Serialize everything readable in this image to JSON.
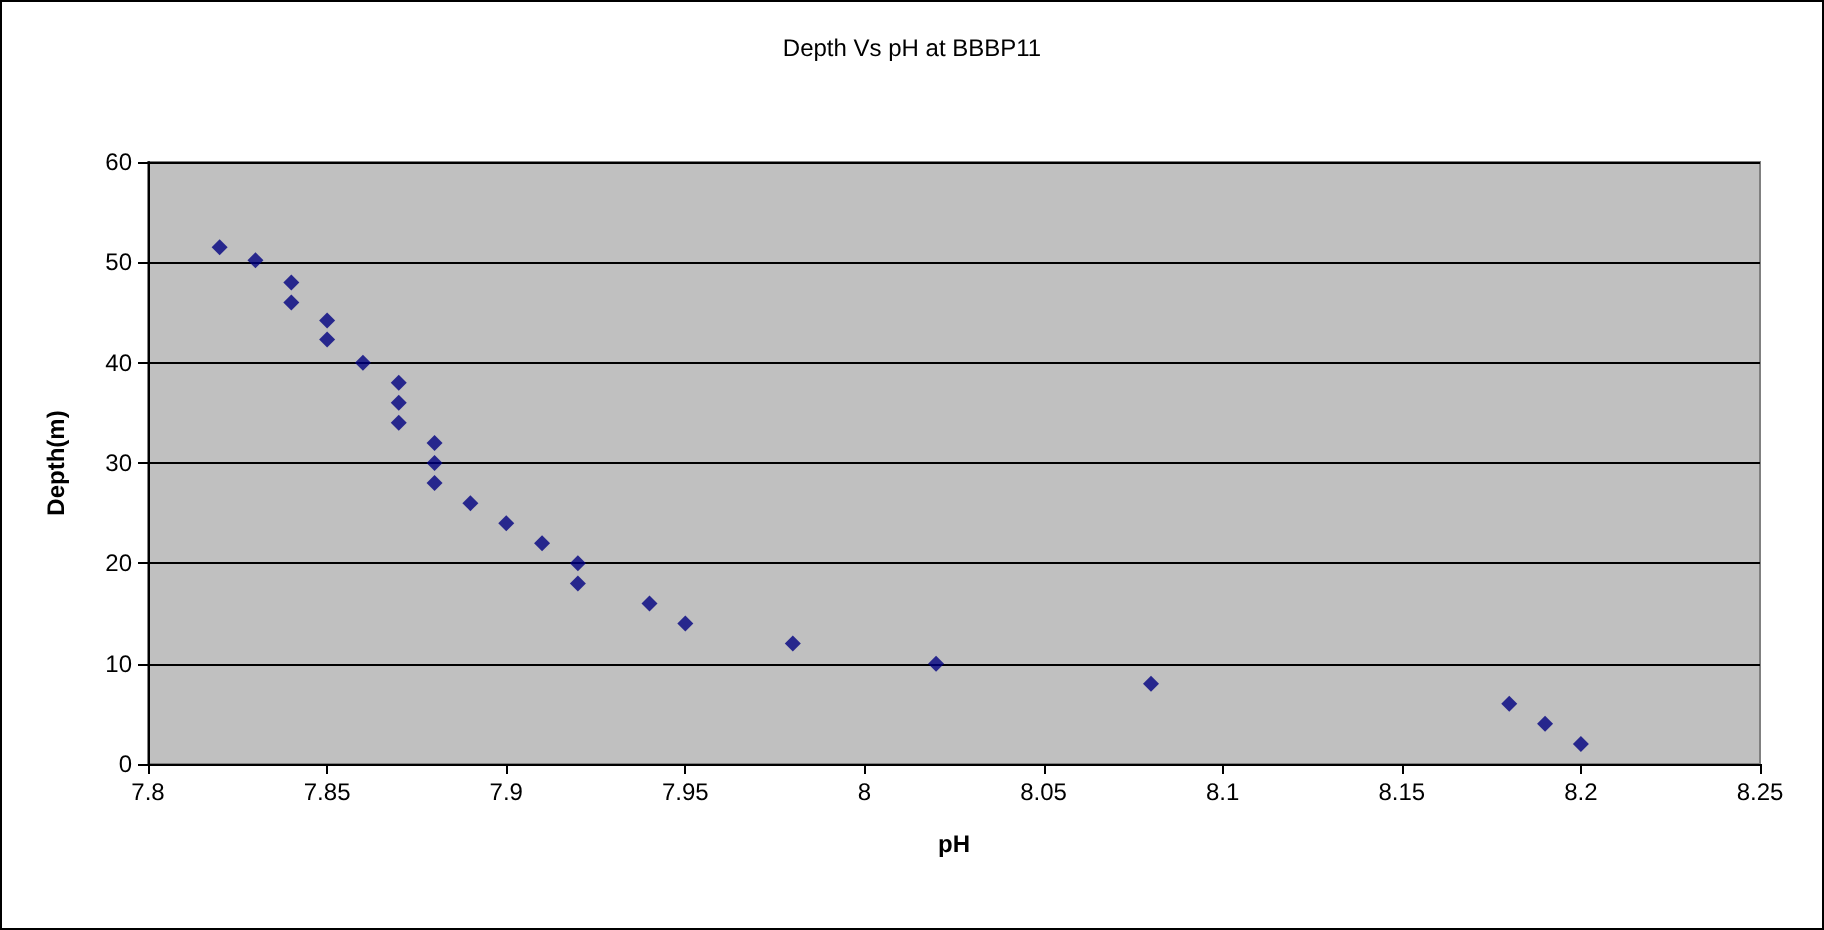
{
  "chart_data": {
    "type": "scatter",
    "title": "Depth Vs pH at BBBP11",
    "xlabel": "pH",
    "ylabel": "Depth(m)",
    "x": [
      7.82,
      7.83,
      7.84,
      7.84,
      7.85,
      7.85,
      7.86,
      7.87,
      7.87,
      7.87,
      7.88,
      7.88,
      7.88,
      7.89,
      7.9,
      7.91,
      7.92,
      7.92,
      7.94,
      7.95,
      7.98,
      8.02,
      8.08,
      8.18,
      8.19,
      8.2
    ],
    "values": [
      51.5,
      50.2,
      48,
      46,
      44.2,
      42.3,
      40,
      38,
      36,
      34,
      32,
      30,
      28,
      26,
      24,
      22,
      20,
      18,
      16,
      14,
      12,
      10,
      8,
      6,
      4,
      2
    ],
    "color": "#000080",
    "marker": "diamond",
    "grid": "y",
    "xlim": [
      7.8,
      8.25
    ],
    "xticks": [
      7.8,
      7.85,
      7.9,
      7.95,
      8,
      8.05,
      8.1,
      8.15,
      8.2,
      8.25
    ],
    "ylim": [
      0,
      60
    ],
    "yticks": [
      0,
      10,
      20,
      30,
      40,
      50,
      60
    ]
  }
}
